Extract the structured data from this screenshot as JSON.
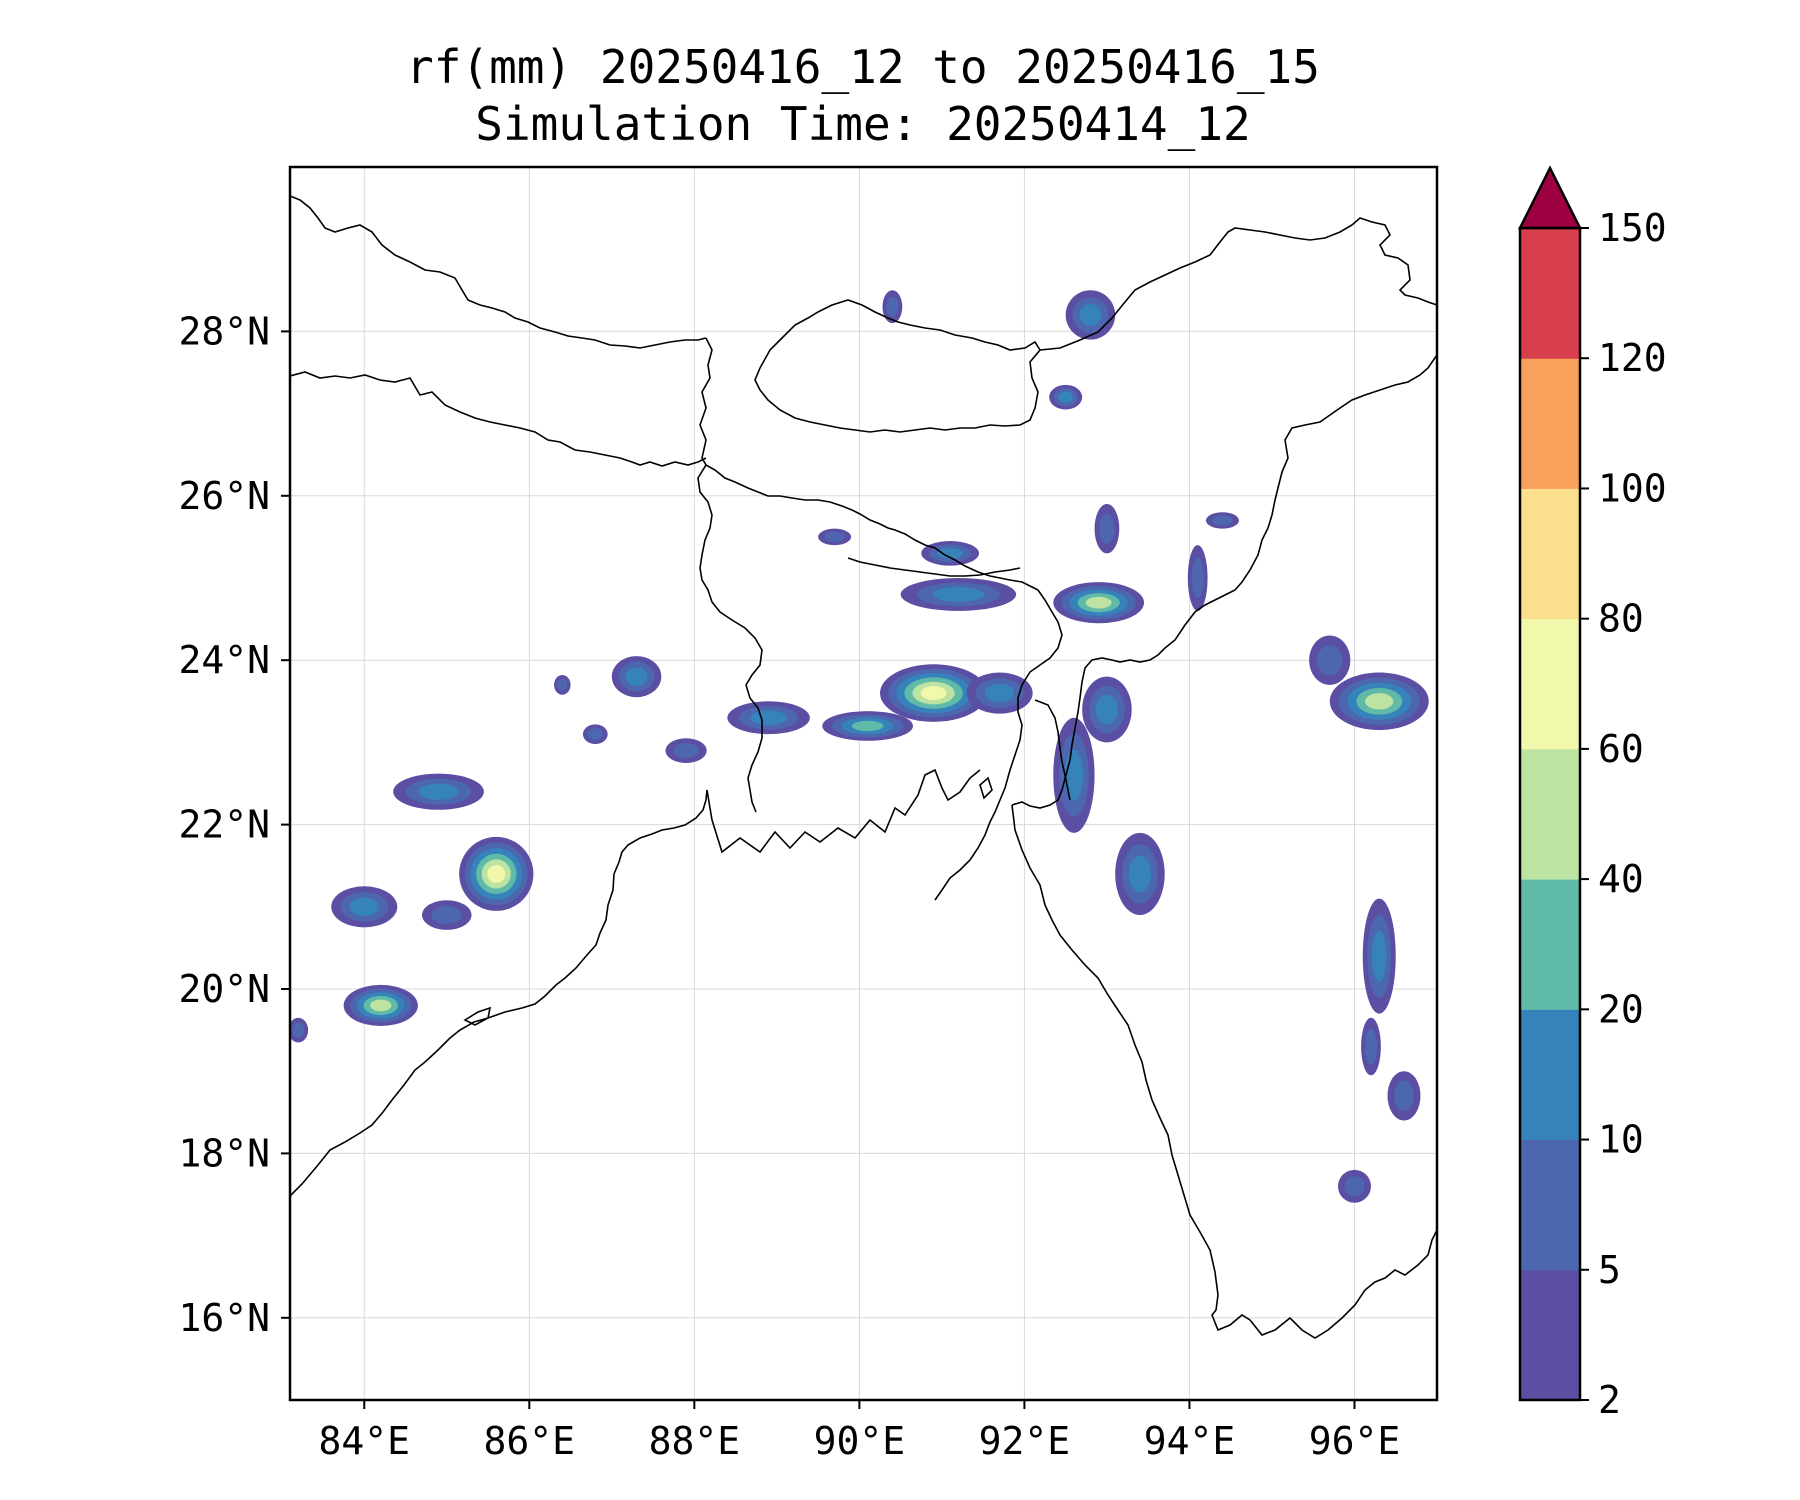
{
  "title": {
    "line1": "rf(mm) 20250416_12 to 20250416_15",
    "line2": "Simulation Time: 20250414_12"
  },
  "map": {
    "lon_range": [
      83.1,
      97.0
    ],
    "lat_range": [
      15.0,
      30.0
    ],
    "lon_ticks": [
      84,
      86,
      88,
      90,
      92,
      94,
      96
    ],
    "lat_ticks": [
      16,
      18,
      20,
      22,
      24,
      26,
      28
    ],
    "lon_tick_labels": [
      "84°E",
      "86°E",
      "88°E",
      "90°E",
      "92°E",
      "94°E",
      "96°E"
    ],
    "lat_tick_labels": [
      "16°N",
      "18°N",
      "20°N",
      "22°N",
      "24°N",
      "26°N",
      "28°N"
    ],
    "gridlines": true
  },
  "colorbar": {
    "levels": [
      2,
      5,
      10,
      20,
      40,
      60,
      80,
      100,
      120,
      150
    ],
    "labels": [
      "2",
      "5",
      "10",
      "20",
      "40",
      "60",
      "80",
      "100",
      "120",
      "150"
    ],
    "colors": [
      "#5a4fa2",
      "#4d66b0",
      "#3683bb",
      "#5fbba8",
      "#bde3a2",
      "#f2f8ab",
      "#fcdf8d",
      "#f9a15a",
      "#d73f4f"
    ],
    "extend_color": "#9e0142",
    "extend": "max"
  },
  "chart_data": {
    "type": "heatmap",
    "title": "rf(mm) 20250416_12 to 20250416_15",
    "subtitle": "Simulation Time: 20250414_12",
    "xlabel": "",
    "ylabel": "",
    "xlim": [
      83.1,
      97.0
    ],
    "ylim": [
      15.0,
      30.0
    ],
    "units": "mm",
    "rain_cells": [
      {
        "lon": 85.6,
        "lat": 21.4,
        "rx": 0.45,
        "ry": 0.45,
        "max_mm": 60
      },
      {
        "lon": 84.2,
        "lat": 19.8,
        "rx": 0.45,
        "ry": 0.25,
        "max_mm": 40
      },
      {
        "lon": 84.9,
        "lat": 22.4,
        "rx": 0.55,
        "ry": 0.22,
        "max_mm": 10
      },
      {
        "lon": 84.0,
        "lat": 21.0,
        "rx": 0.4,
        "ry": 0.25,
        "max_mm": 10
      },
      {
        "lon": 85.0,
        "lat": 20.9,
        "rx": 0.3,
        "ry": 0.18,
        "max_mm": 5
      },
      {
        "lon": 87.3,
        "lat": 23.8,
        "rx": 0.3,
        "ry": 0.25,
        "max_mm": 10
      },
      {
        "lon": 87.9,
        "lat": 22.9,
        "rx": 0.25,
        "ry": 0.15,
        "max_mm": 5
      },
      {
        "lon": 88.9,
        "lat": 23.3,
        "rx": 0.5,
        "ry": 0.2,
        "max_mm": 10
      },
      {
        "lon": 90.1,
        "lat": 23.2,
        "rx": 0.55,
        "ry": 0.18,
        "max_mm": 20
      },
      {
        "lon": 90.9,
        "lat": 23.6,
        "rx": 0.65,
        "ry": 0.35,
        "max_mm": 60
      },
      {
        "lon": 91.7,
        "lat": 23.6,
        "rx": 0.4,
        "ry": 0.25,
        "max_mm": 10
      },
      {
        "lon": 91.1,
        "lat": 25.3,
        "rx": 0.35,
        "ry": 0.15,
        "max_mm": 10
      },
      {
        "lon": 91.2,
        "lat": 24.8,
        "rx": 0.7,
        "ry": 0.2,
        "max_mm": 10
      },
      {
        "lon": 92.9,
        "lat": 24.7,
        "rx": 0.55,
        "ry": 0.25,
        "max_mm": 40
      },
      {
        "lon": 93.0,
        "lat": 25.6,
        "rx": 0.15,
        "ry": 0.3,
        "max_mm": 5
      },
      {
        "lon": 94.1,
        "lat": 25.0,
        "rx": 0.12,
        "ry": 0.4,
        "max_mm": 5
      },
      {
        "lon": 92.6,
        "lat": 22.6,
        "rx": 0.25,
        "ry": 0.7,
        "max_mm": 10
      },
      {
        "lon": 93.0,
        "lat": 23.4,
        "rx": 0.3,
        "ry": 0.4,
        "max_mm": 10
      },
      {
        "lon": 93.4,
        "lat": 21.4,
        "rx": 0.3,
        "ry": 0.5,
        "max_mm": 10
      },
      {
        "lon": 92.8,
        "lat": 28.2,
        "rx": 0.3,
        "ry": 0.3,
        "max_mm": 10
      },
      {
        "lon": 92.5,
        "lat": 27.2,
        "rx": 0.2,
        "ry": 0.15,
        "max_mm": 10
      },
      {
        "lon": 90.4,
        "lat": 28.3,
        "rx": 0.12,
        "ry": 0.2,
        "max_mm": 5
      },
      {
        "lon": 96.3,
        "lat": 23.5,
        "rx": 0.6,
        "ry": 0.35,
        "max_mm": 40
      },
      {
        "lon": 95.7,
        "lat": 24.0,
        "rx": 0.25,
        "ry": 0.3,
        "max_mm": 5
      },
      {
        "lon": 96.3,
        "lat": 20.4,
        "rx": 0.2,
        "ry": 0.7,
        "max_mm": 10
      },
      {
        "lon": 96.6,
        "lat": 18.7,
        "rx": 0.2,
        "ry": 0.3,
        "max_mm": 5
      },
      {
        "lon": 96.2,
        "lat": 19.3,
        "rx": 0.12,
        "ry": 0.35,
        "max_mm": 5
      },
      {
        "lon": 96.0,
        "lat": 17.6,
        "rx": 0.2,
        "ry": 0.2,
        "max_mm": 5
      },
      {
        "lon": 83.2,
        "lat": 19.5,
        "rx": 0.12,
        "ry": 0.15,
        "max_mm": 5
      },
      {
        "lon": 86.8,
        "lat": 23.1,
        "rx": 0.15,
        "ry": 0.12,
        "max_mm": 5
      },
      {
        "lon": 86.4,
        "lat": 23.7,
        "rx": 0.1,
        "ry": 0.12,
        "max_mm": 5
      },
      {
        "lon": 89.7,
        "lat": 25.5,
        "rx": 0.2,
        "ry": 0.1,
        "max_mm": 5
      },
      {
        "lon": 94.4,
        "lat": 25.7,
        "rx": 0.2,
        "ry": 0.1,
        "max_mm": 5
      }
    ]
  }
}
